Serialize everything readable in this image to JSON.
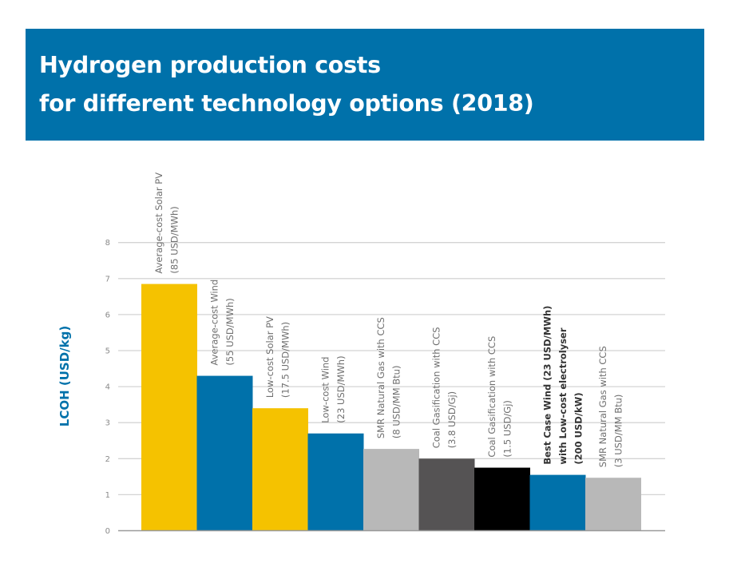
{
  "header": {
    "title_lines": [
      "Hydrogen production costs",
      "for different technology options (2018)"
    ],
    "background_color": "#0071aa"
  },
  "chart_data": {
    "type": "bar",
    "title": "Hydrogen production costs for different technology options (2018)",
    "xlabel": "",
    "ylabel": "LCOH (USD/kg)",
    "ylim": [
      0,
      8
    ],
    "yticks": [
      0,
      1,
      2,
      3,
      4,
      5,
      6,
      7,
      8
    ],
    "grid": true,
    "legend": "none",
    "categories": [
      [
        "Average-cost Solar PV",
        "(85 USD/MWh)"
      ],
      [
        "Average-cost Wind",
        "(55 USD/MWh)"
      ],
      [
        "Low-cost Solar PV",
        "(17.5 USD/MWh)"
      ],
      [
        "Low-cost Wind",
        "(23 USD/MWh)"
      ],
      [
        "SMR Natural Gas with CCS",
        "(8 USD/MM Btu)"
      ],
      [
        "Coal Gasification with CCS",
        "(3.8 USD/Gj)"
      ],
      [
        "Coal Gasification with CCS",
        "(1.5 USD/Gj)"
      ],
      [
        "Best Case Wind (23 USD/MWh)",
        "with Low-cost electrolyser",
        "(200 USD/kW)"
      ],
      [
        "SMR Natural Gas with CCS",
        "(3 USD/MM Btu)"
      ]
    ],
    "values": [
      6.85,
      4.3,
      3.4,
      2.7,
      2.27,
      2.0,
      1.75,
      1.55,
      1.47
    ],
    "colors": [
      "#f5c200",
      "#0071aa",
      "#f5c200",
      "#0071aa",
      "#b8b8b8",
      "#555354",
      "#000000",
      "#0071aa",
      "#b8b8b8"
    ],
    "emphasized": [
      false,
      false,
      false,
      false,
      false,
      false,
      false,
      true,
      false
    ]
  }
}
